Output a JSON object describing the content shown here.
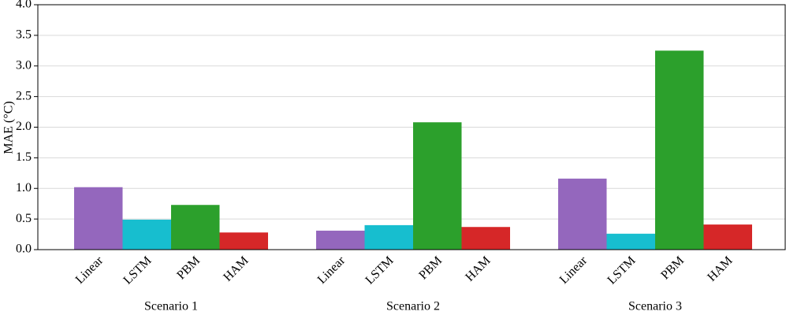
{
  "chart_data": {
    "type": "bar",
    "y_label": "MAE (°C)",
    "categories": [
      "Scenario 1",
      "Scenario 2",
      "Scenario 3"
    ],
    "series": [
      {
        "name": "Linear",
        "color": "#9467bd",
        "values": [
          1.02,
          0.31,
          1.16
        ]
      },
      {
        "name": "LSTM",
        "color": "#17becf",
        "values": [
          0.49,
          0.4,
          0.26
        ]
      },
      {
        "name": "PBM",
        "color": "#2ca02c",
        "values": [
          0.73,
          2.08,
          3.25
        ]
      },
      {
        "name": "HAM",
        "color": "#d62728",
        "values": [
          0.28,
          0.37,
          0.41
        ]
      }
    ],
    "ylim": [
      0,
      4
    ],
    "yticks": [
      {
        "value": 0,
        "label": "0.0"
      },
      0.5,
      {
        "value": 1,
        "label": "1.0"
      },
      1.5,
      {
        "value": 2,
        "label": "2.0"
      },
      2.5,
      {
        "value": 3,
        "label": "3.0"
      },
      3.5,
      {
        "value": 4,
        "label": "4.0"
      }
    ],
    "grid": true
  }
}
